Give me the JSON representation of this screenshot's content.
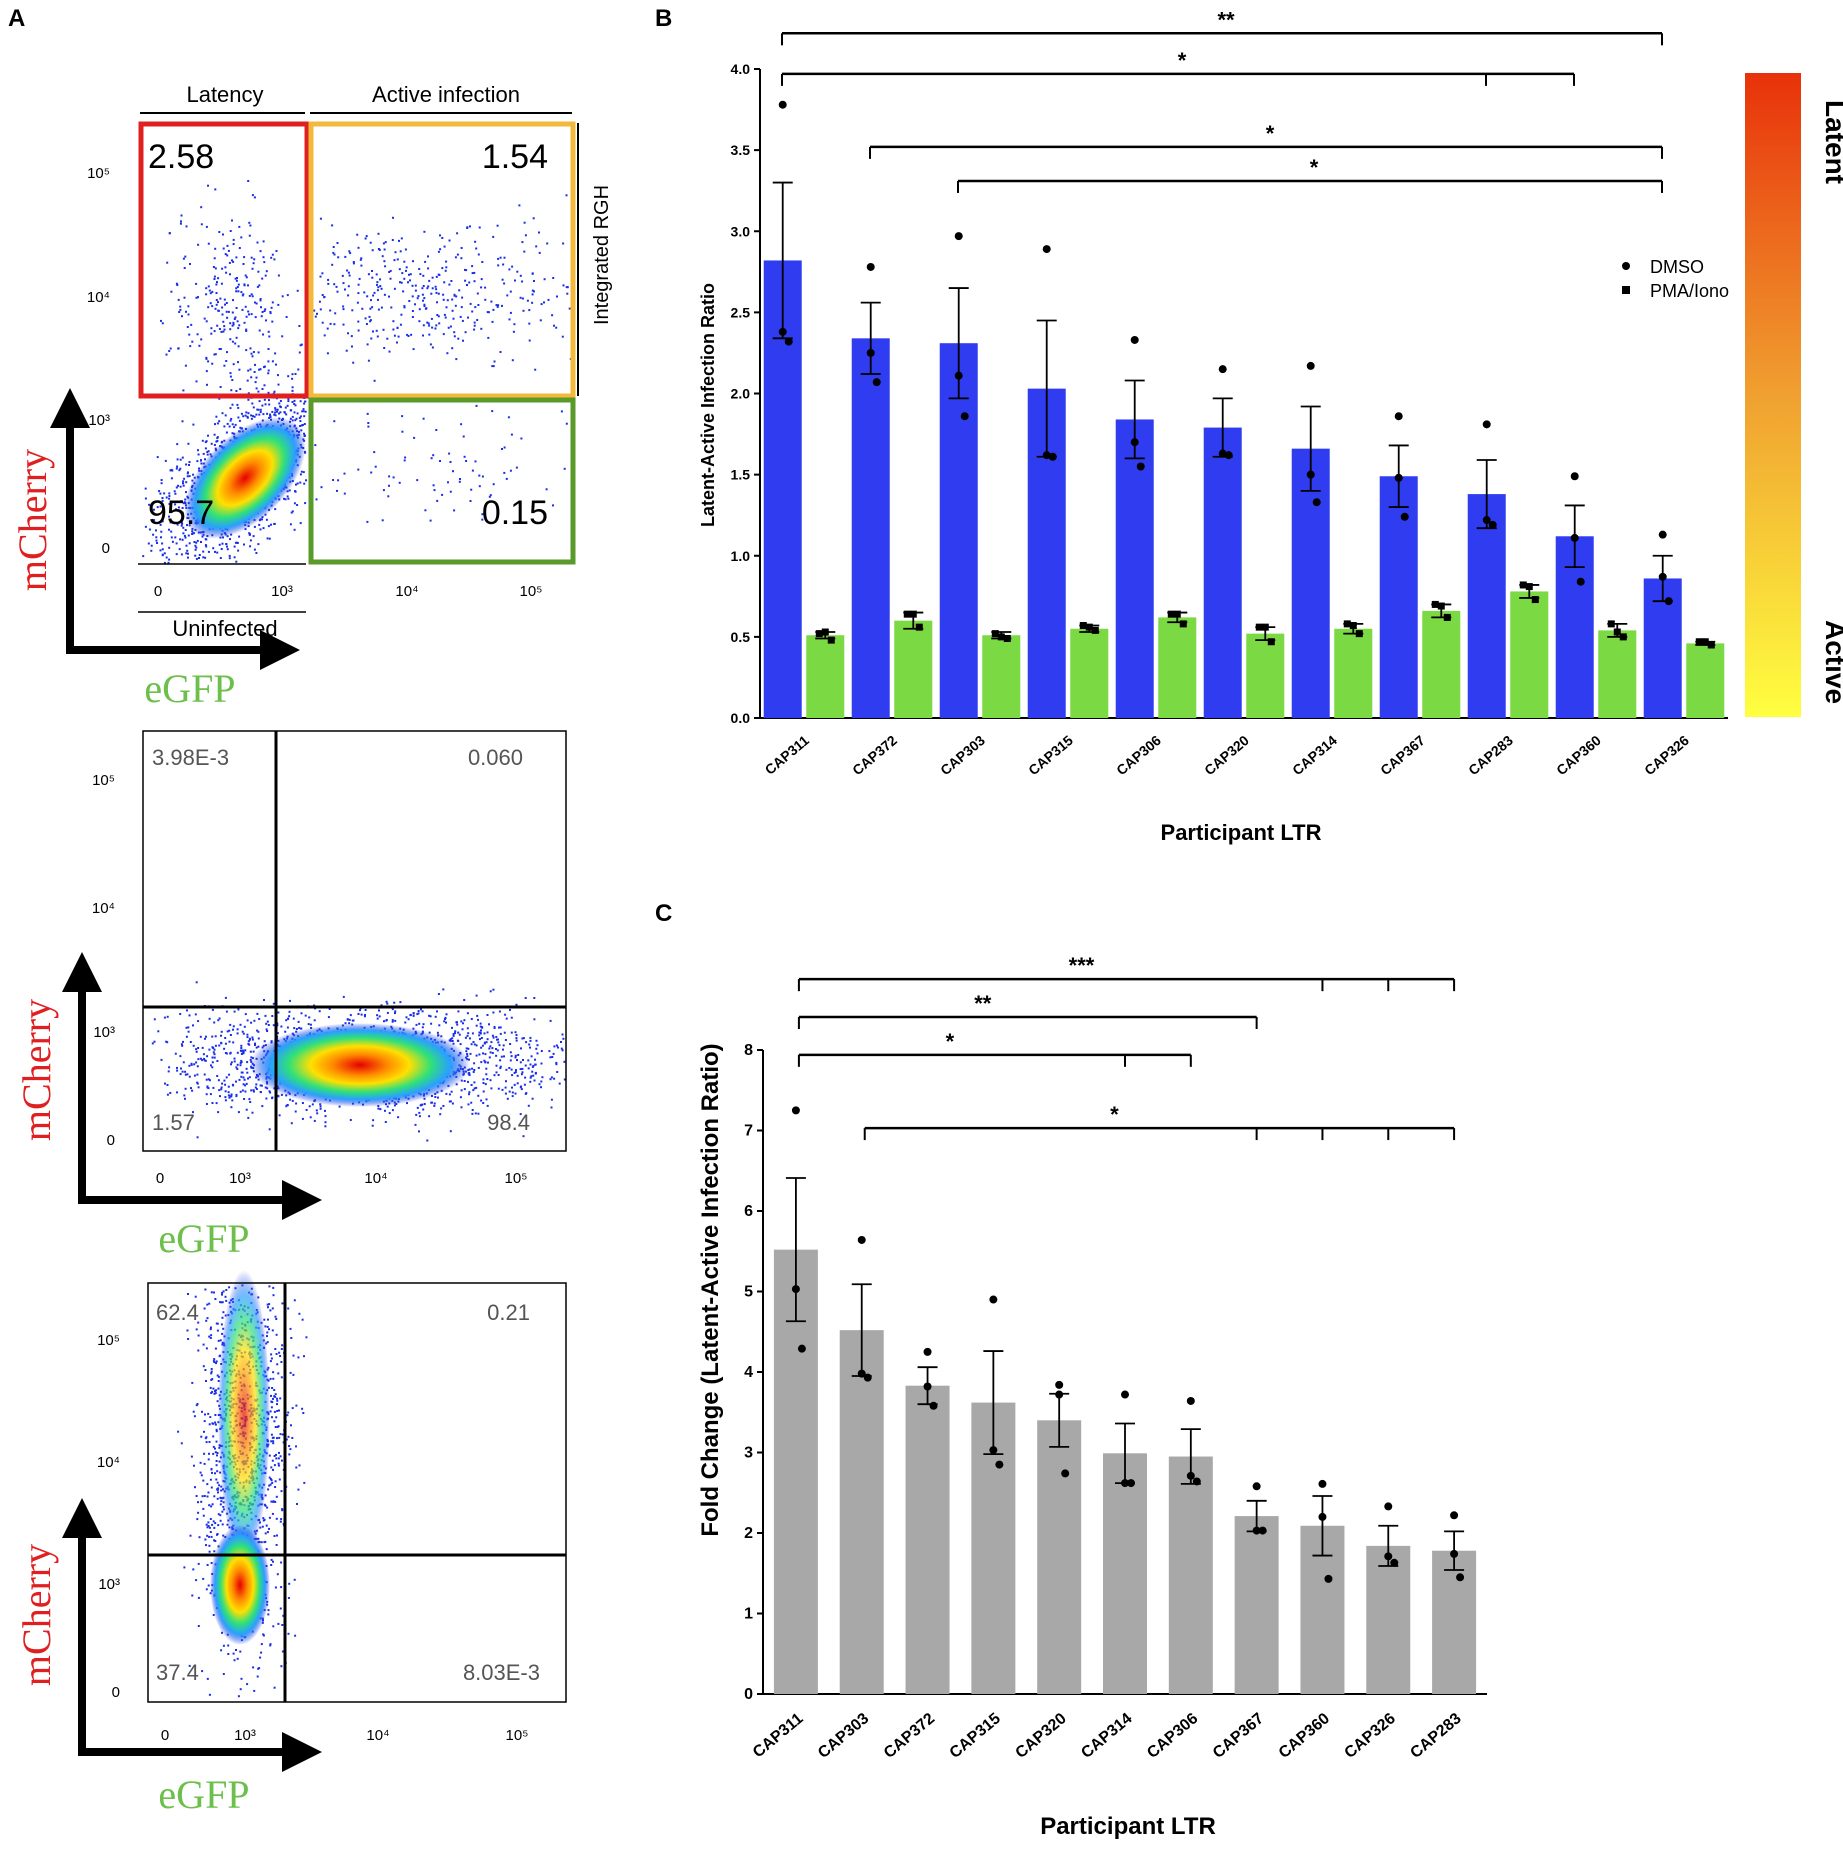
{
  "panels": {
    "a": "A",
    "b": "B",
    "c": "C"
  },
  "flow": {
    "axis_y": "mCherry",
    "axis_x": "eGFP",
    "plot1": {
      "header_left": "Latency",
      "header_right": "Active infection",
      "side_label": "Integrated RGH",
      "bottom_label": "Uninfected",
      "q_ul": "2.58",
      "q_ur": "1.54",
      "q_ll": "95.7",
      "q_lr": "0.15",
      "colors": {
        "latency": "#e02020",
        "active": "#f2b93b",
        "green": "#5a9a2a"
      }
    },
    "plot2": {
      "q_ul": "3.98E-3",
      "q_ur": "0.060",
      "q_ll": "1.57",
      "q_lr": "98.4"
    },
    "plot3": {
      "q_ul": "62.4",
      "q_ur": "0.21",
      "q_ll": "37.4",
      "q_lr": "8.03E-3"
    },
    "tick_y": [
      "0",
      "10³",
      "10⁴",
      "10⁵"
    ],
    "tick_x": [
      "0",
      "10³",
      "10⁴",
      "10⁵"
    ]
  },
  "chart_data": [
    {
      "type": "bar",
      "panel": "B",
      "title": "",
      "xlabel": "Participant LTR",
      "ylabel": "Latent-Active Infection Ratio",
      "ylim": [
        0,
        4.0
      ],
      "yticks": [
        "0.0",
        "0.5",
        "1.0",
        "1.5",
        "2.0",
        "2.5",
        "3.0",
        "3.5",
        "4.0"
      ],
      "categories": [
        "CAP311",
        "CAP372",
        "CAP303",
        "CAP315",
        "CAP306",
        "CAP320",
        "CAP314",
        "CAP367",
        "CAP283",
        "CAP360",
        "CAP326"
      ],
      "series": [
        {
          "name": "DMSO",
          "color": "#2f3cf0",
          "values": [
            2.82,
            2.34,
            2.31,
            2.03,
            1.84,
            1.79,
            1.66,
            1.49,
            1.38,
            1.12,
            0.86
          ],
          "sem": [
            0.48,
            0.22,
            0.34,
            0.42,
            0.24,
            0.18,
            0.26,
            0.19,
            0.21,
            0.19,
            0.14
          ],
          "points": [
            [
              3.78,
              2.38,
              2.32
            ],
            [
              2.78,
              2.25,
              2.07
            ],
            [
              2.97,
              2.11,
              1.86
            ],
            [
              2.89,
              1.62,
              1.61
            ],
            [
              2.33,
              1.7,
              1.55
            ],
            [
              2.15,
              1.63,
              1.62
            ],
            [
              2.17,
              1.5,
              1.33
            ],
            [
              1.86,
              1.48,
              1.24
            ],
            [
              1.81,
              1.22,
              1.19
            ],
            [
              1.49,
              1.11,
              0.84
            ],
            [
              1.13,
              0.87,
              0.72
            ]
          ]
        },
        {
          "name": "PMA/Iono",
          "color": "#7bd944",
          "values": [
            0.51,
            0.6,
            0.51,
            0.55,
            0.62,
            0.52,
            0.55,
            0.66,
            0.78,
            0.54,
            0.46
          ],
          "sem": [
            0.02,
            0.05,
            0.02,
            0.02,
            0.03,
            0.04,
            0.03,
            0.04,
            0.04,
            0.04,
            0.01
          ],
          "points": [
            [
              0.52,
              0.53,
              0.48
            ],
            [
              0.64,
              0.64,
              0.56
            ],
            [
              0.52,
              0.5,
              0.49
            ],
            [
              0.57,
              0.56,
              0.54
            ],
            [
              0.64,
              0.64,
              0.58
            ],
            [
              0.56,
              0.56,
              0.47
            ],
            [
              0.58,
              0.57,
              0.52
            ],
            [
              0.7,
              0.69,
              0.62
            ],
            [
              0.82,
              0.81,
              0.73
            ],
            [
              0.58,
              0.53,
              0.5
            ],
            [
              0.47,
              0.47,
              0.45
            ]
          ]
        }
      ],
      "legend": [
        "DMSO",
        "PMA/Iono"
      ],
      "significance": [
        "**",
        "*",
        "*",
        "*"
      ],
      "colorbar": {
        "top": "Latent",
        "bottom": "Active"
      }
    },
    {
      "type": "bar",
      "panel": "C",
      "title": "",
      "xlabel": "Participant LTR",
      "ylabel": "Fold Change (Latent-Active Infection Ratio)",
      "ylim": [
        0,
        8
      ],
      "yticks": [
        "0",
        "1",
        "2",
        "3",
        "4",
        "5",
        "6",
        "7",
        "8"
      ],
      "categories": [
        "CAP311",
        "CAP303",
        "CAP372",
        "CAP315",
        "CAP320",
        "CAP314",
        "CAP306",
        "CAP367",
        "CAP360",
        "CAP326",
        "CAP283"
      ],
      "series": [
        {
          "name": "Fold change",
          "color": "#a8a8a8",
          "values": [
            5.52,
            4.52,
            3.83,
            3.62,
            3.4,
            2.99,
            2.95,
            2.21,
            2.09,
            1.84,
            1.78
          ],
          "sem": [
            0.89,
            0.57,
            0.23,
            0.64,
            0.33,
            0.37,
            0.34,
            0.19,
            0.37,
            0.25,
            0.24
          ],
          "points": [
            [
              7.25,
              5.03,
              4.29
            ],
            [
              5.64,
              3.98,
              3.93
            ],
            [
              4.25,
              3.82,
              3.58
            ],
            [
              4.9,
              3.03,
              2.85
            ],
            [
              3.84,
              3.72,
              2.74
            ],
            [
              3.72,
              2.62,
              2.62
            ],
            [
              3.64,
              2.71,
              2.64
            ],
            [
              2.58,
              2.03,
              2.03
            ],
            [
              2.61,
              2.2,
              1.43
            ],
            [
              2.33,
              1.71,
              1.63
            ],
            [
              2.22,
              1.74,
              1.45
            ]
          ]
        }
      ],
      "significance": [
        "***",
        "**",
        "*",
        "*"
      ]
    }
  ]
}
